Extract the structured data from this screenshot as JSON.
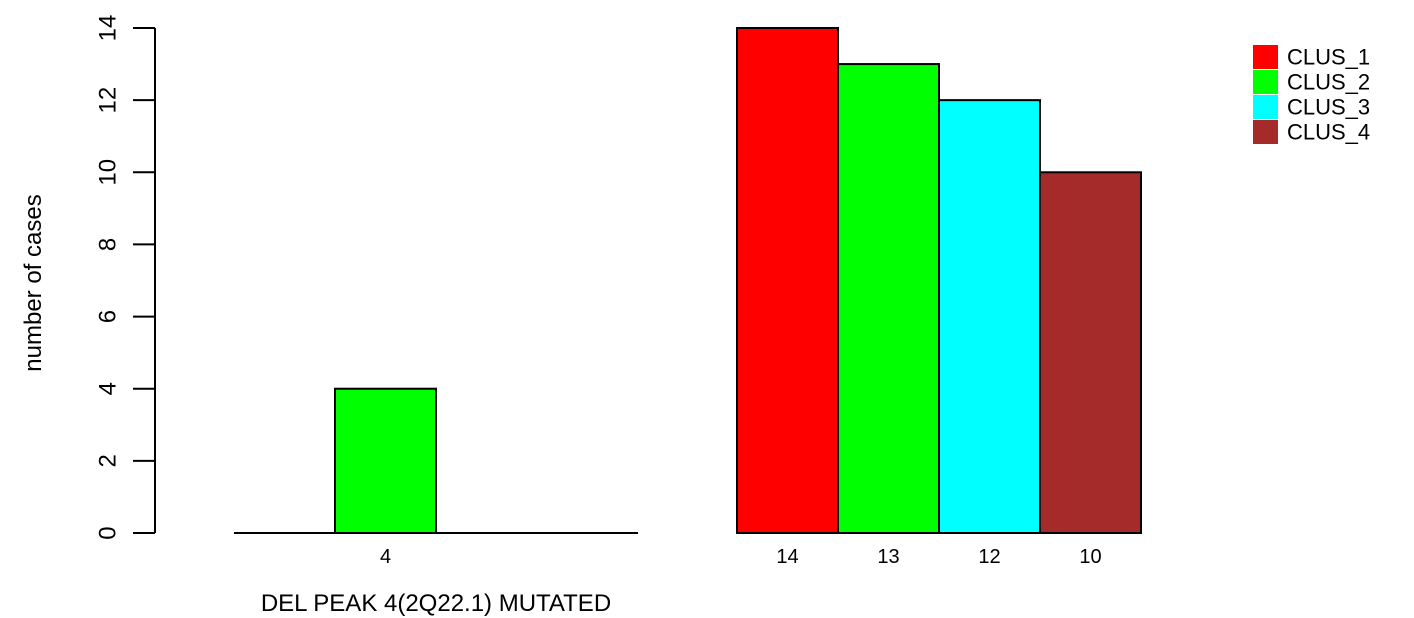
{
  "chart_data": {
    "type": "bar",
    "ylabel": "number of cases",
    "xlabel": "DEL PEAK  4(2Q22.1) MUTATED",
    "ylim": [
      0,
      14
    ],
    "y_ticks": [
      0,
      2,
      4,
      6,
      8,
      10,
      12,
      14
    ],
    "grid": false,
    "legend_position": "top-right",
    "groups": [
      {
        "name": "",
        "bar_labels": [
          "",
          "4",
          "",
          ""
        ],
        "values": [
          0,
          4,
          0,
          0
        ]
      },
      {
        "name": "",
        "bar_labels": [
          "14",
          "13",
          "12",
          "10"
        ],
        "values": [
          14,
          13,
          12,
          10
        ]
      }
    ],
    "series": [
      {
        "name": "CLUS_1",
        "color": "#ff0000"
      },
      {
        "name": "CLUS_2",
        "color": "#00ff00"
      },
      {
        "name": "CLUS_3",
        "color": "#00ffff"
      },
      {
        "name": "CLUS_4",
        "color": "#a52a2a"
      }
    ]
  }
}
